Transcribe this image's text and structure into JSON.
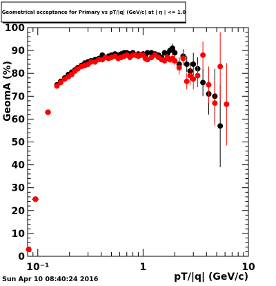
{
  "chart_data": {
    "type": "scatter",
    "title": "Geometrical acceptance for Primary vs pT/|q| (GeV/c) at | η | <= 1.0",
    "xlabel": "pT/|q| (GeV/c)",
    "ylabel": "GeomA (%)",
    "x_scale": "log",
    "xlim": [
      0.08,
      10
    ],
    "ylim": [
      0,
      100
    ],
    "x_tick_labels": [
      "10⁻¹",
      "1",
      "10"
    ],
    "y_tick_labels": [
      "0",
      "10",
      "20",
      "30",
      "40",
      "50",
      "60",
      "70",
      "80",
      "90",
      "100"
    ],
    "grid": false,
    "series": [
      {
        "color": "#000000",
        "x": [
          0.082,
          0.095,
          0.125,
          0.152,
          0.165,
          0.18,
          0.195,
          0.21,
          0.225,
          0.24,
          0.26,
          0.28,
          0.3,
          0.32,
          0.35,
          0.38,
          0.41,
          0.44,
          0.47,
          0.5,
          0.54,
          0.58,
          0.62,
          0.66,
          0.7,
          0.75,
          0.8,
          0.85,
          0.9,
          0.95,
          1.0,
          1.05,
          1.1,
          1.2,
          1.3,
          1.4,
          1.5,
          1.6,
          1.7,
          1.8,
          1.9,
          2.0,
          2.2,
          2.4,
          2.6,
          2.8,
          3.0,
          3.3,
          3.7,
          4.2,
          4.8,
          5.4
        ],
        "y": [
          3,
          25,
          63,
          75,
          76.5,
          78,
          79.5,
          80.5,
          81.5,
          82.5,
          83.5,
          84.5,
          85,
          85.5,
          86,
          86.5,
          88,
          87,
          87.5,
          88,
          88.5,
          88,
          88.5,
          89,
          89,
          88.5,
          89,
          88,
          88.5,
          88,
          88.5,
          88,
          89,
          89,
          88.5,
          88,
          87,
          89,
          88.5,
          90,
          91,
          89,
          84,
          87.5,
          84,
          81,
          84,
          82,
          76,
          71,
          70,
          57
        ],
        "yerr": [
          0.5,
          0.5,
          0.5,
          0.5,
          0.3,
          0.3,
          0.3,
          0.3,
          0.3,
          0.3,
          0.3,
          0.3,
          0.3,
          0.3,
          0.3,
          0.3,
          0.5,
          0.5,
          0.5,
          0.5,
          0.5,
          0.5,
          0.5,
          0.5,
          0.5,
          0.7,
          0.7,
          0.7,
          0.7,
          0.7,
          0.7,
          0.7,
          0.7,
          0.8,
          1,
          1,
          1,
          1.2,
          1.5,
          1.5,
          2,
          2,
          3,
          3,
          3.5,
          4,
          5,
          5,
          6,
          9,
          12,
          18
        ]
      },
      {
        "color": "#ff0000",
        "x": [
          0.082,
          0.095,
          0.125,
          0.152,
          0.165,
          0.18,
          0.195,
          0.21,
          0.225,
          0.24,
          0.26,
          0.28,
          0.3,
          0.32,
          0.35,
          0.38,
          0.41,
          0.44,
          0.47,
          0.5,
          0.54,
          0.58,
          0.62,
          0.66,
          0.7,
          0.75,
          0.8,
          0.85,
          0.9,
          0.95,
          1.0,
          1.05,
          1.1,
          1.2,
          1.3,
          1.4,
          1.5,
          1.6,
          1.7,
          1.8,
          1.9,
          2.0,
          2.2,
          2.4,
          2.6,
          2.8,
          3.0,
          3.3,
          3.7,
          4.2,
          4.8,
          5.4,
          6.2
        ],
        "y": [
          3,
          25,
          63,
          74.5,
          76,
          77.5,
          78.5,
          79.5,
          81,
          82,
          83,
          83.5,
          84,
          85,
          85,
          86,
          86,
          87,
          86.5,
          87,
          87.5,
          86.5,
          87,
          87.5,
          88,
          87,
          88,
          88,
          87.5,
          88,
          88,
          86.5,
          86,
          87,
          88,
          87,
          86,
          85.5,
          87,
          86,
          86.5,
          85.5,
          82.5,
          86.5,
          76.5,
          79,
          77.5,
          79,
          88,
          75,
          67,
          83,
          66.5
        ],
        "yerr": [
          0.5,
          0.5,
          0.5,
          0.5,
          0.3,
          0.3,
          0.3,
          0.3,
          0.3,
          0.3,
          0.3,
          0.3,
          0.3,
          0.3,
          0.3,
          0.3,
          0.5,
          0.5,
          0.5,
          0.5,
          0.5,
          0.5,
          0.5,
          0.5,
          0.5,
          0.7,
          0.7,
          0.7,
          0.7,
          0.7,
          0.7,
          0.7,
          0.7,
          0.8,
          1,
          1,
          1,
          1.2,
          1.5,
          1.5,
          2,
          2,
          3,
          3,
          3.5,
          4,
          4.5,
          5,
          6,
          8,
          10,
          15,
          18
        ]
      }
    ]
  },
  "footer": {
    "timestamp": "Sun Apr 10 08:40:24 2016"
  }
}
